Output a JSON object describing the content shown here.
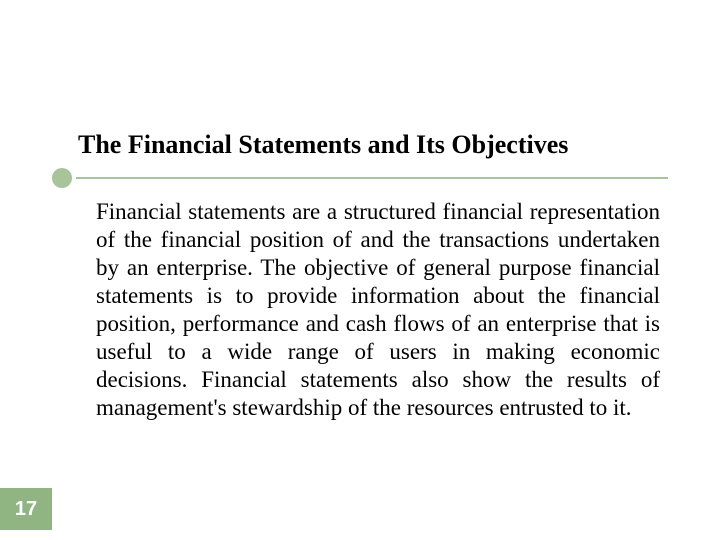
{
  "slide": {
    "title": "The Financial Statements and Its Objectives",
    "title_fontsize": 26,
    "title_color": "#000000",
    "body": "Financial statements are a structured financial representation of the financial position of and the transactions undertaken by an enterprise. The objective of general purpose financial statements is to provide information about the financial position, performance and cash flows of an enterprise that is useful to a wide range of users in making economic decisions. Financial statements also show the results of management's stewardship of the resources entrusted to it.",
    "body_fontsize": 23,
    "body_lineheight": 28,
    "body_color": "#000000",
    "page_number": "17",
    "page_badge_bg": "#90b582",
    "page_badge_fontsize": 20,
    "rule": {
      "bullet_color": "#a8c49a",
      "bullet_diameter": 20,
      "line_color": "#a8c49a",
      "line_width": 2
    },
    "background_color": "#ffffff"
  }
}
